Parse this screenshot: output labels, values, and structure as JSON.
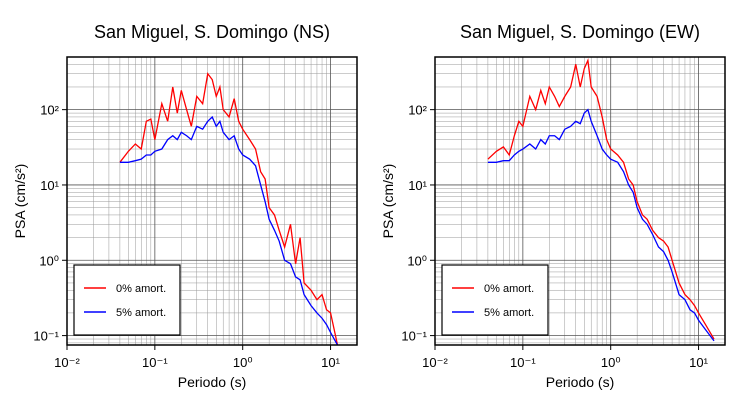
{
  "chart_data": [
    {
      "type": "line",
      "title": "San Miguel, S. Domingo (NS)",
      "xlabel": "Periodo (s)",
      "ylabel": "PSA (cm/s²)",
      "xscale": "log",
      "yscale": "log",
      "xlim": [
        0.01,
        20
      ],
      "ylim": [
        0.075,
        500
      ],
      "grid": true,
      "legend": "lower left",
      "xticks": [
        {
          "value": 0.01,
          "label": "10⁻²"
        },
        {
          "value": 0.1,
          "label": "10⁻¹"
        },
        {
          "value": 1,
          "label": "10⁰"
        },
        {
          "value": 10,
          "label": "10¹"
        }
      ],
      "yticks": [
        {
          "value": 0.1,
          "label": "10⁻¹"
        },
        {
          "value": 1,
          "label": "10⁰"
        },
        {
          "value": 10,
          "label": "10¹"
        },
        {
          "value": 100,
          "label": "10²"
        }
      ],
      "x": [
        0.04,
        0.05,
        0.06,
        0.07,
        0.08,
        0.09,
        0.1,
        0.12,
        0.14,
        0.16,
        0.18,
        0.2,
        0.23,
        0.26,
        0.3,
        0.35,
        0.4,
        0.45,
        0.5,
        0.55,
        0.6,
        0.7,
        0.8,
        0.9,
        1.0,
        1.2,
        1.4,
        1.6,
        1.8,
        2.0,
        2.3,
        2.6,
        3.0,
        3.5,
        4,
        4.5,
        5,
        6,
        7,
        8,
        9,
        10,
        11,
        12
      ],
      "series": [
        {
          "name": "0% amort.",
          "color": "#ff0000",
          "values": [
            20,
            28,
            35,
            30,
            70,
            75,
            40,
            120,
            70,
            200,
            90,
            180,
            100,
            60,
            150,
            120,
            300,
            250,
            150,
            200,
            100,
            80,
            140,
            70,
            55,
            40,
            30,
            15,
            12,
            5,
            4,
            2.5,
            1.5,
            3,
            0.9,
            2,
            0.5,
            0.4,
            0.3,
            0.35,
            0.22,
            0.2,
            0.12,
            0.075
          ]
        },
        {
          "name": "5% amort.",
          "color": "#0000ff",
          "values": [
            20,
            20,
            21,
            22,
            25,
            25,
            28,
            30,
            40,
            45,
            40,
            50,
            45,
            40,
            60,
            55,
            70,
            80,
            60,
            70,
            50,
            40,
            45,
            30,
            25,
            22,
            18,
            10,
            6,
            3.5,
            2.5,
            1.8,
            1.0,
            0.9,
            0.6,
            0.55,
            0.35,
            0.25,
            0.2,
            0.17,
            0.14,
            0.11,
            0.09,
            0.075
          ]
        }
      ]
    },
    {
      "type": "line",
      "title": "San Miguel, S. Domingo (EW)",
      "xlabel": "Periodo (s)",
      "ylabel": "PSA (cm/s²)",
      "xscale": "log",
      "yscale": "log",
      "xlim": [
        0.01,
        20
      ],
      "ylim": [
        0.075,
        500
      ],
      "grid": true,
      "legend": "lower left",
      "xticks": [
        {
          "value": 0.01,
          "label": "10⁻²"
        },
        {
          "value": 0.1,
          "label": "10⁻¹"
        },
        {
          "value": 1,
          "label": "10⁰"
        },
        {
          "value": 10,
          "label": "10¹"
        }
      ],
      "yticks": [
        {
          "value": 0.1,
          "label": "10⁻¹"
        },
        {
          "value": 1,
          "label": "10⁰"
        },
        {
          "value": 10,
          "label": "10¹"
        },
        {
          "value": 100,
          "label": "10²"
        }
      ],
      "x": [
        0.04,
        0.05,
        0.06,
        0.07,
        0.08,
        0.09,
        0.1,
        0.12,
        0.14,
        0.16,
        0.18,
        0.2,
        0.23,
        0.26,
        0.3,
        0.35,
        0.4,
        0.45,
        0.5,
        0.55,
        0.6,
        0.7,
        0.8,
        0.9,
        1.0,
        1.2,
        1.4,
        1.6,
        1.8,
        2.0,
        2.3,
        2.6,
        3.0,
        3.5,
        4,
        4.5,
        5,
        6,
        7,
        8,
        9,
        10,
        12,
        15
      ],
      "series": [
        {
          "name": "0% amort.",
          "color": "#ff0000",
          "values": [
            22,
            28,
            32,
            25,
            45,
            70,
            60,
            150,
            100,
            180,
            120,
            200,
            150,
            110,
            150,
            200,
            400,
            200,
            350,
            450,
            200,
            150,
            80,
            40,
            30,
            25,
            20,
            12,
            10,
            6,
            4,
            3.5,
            2.5,
            2,
            1.8,
            1.5,
            1.0,
            0.5,
            0.35,
            0.3,
            0.25,
            0.2,
            0.14,
            0.09
          ]
        },
        {
          "name": "5% amort.",
          "color": "#0000ff",
          "values": [
            20,
            20,
            21,
            21,
            25,
            28,
            30,
            35,
            30,
            40,
            35,
            45,
            45,
            40,
            55,
            60,
            70,
            65,
            90,
            100,
            70,
            45,
            30,
            25,
            22,
            20,
            15,
            10,
            8,
            5,
            3.5,
            3,
            2.2,
            1.5,
            1.3,
            1.0,
            0.7,
            0.35,
            0.3,
            0.22,
            0.2,
            0.16,
            0.12,
            0.085
          ]
        }
      ]
    }
  ]
}
